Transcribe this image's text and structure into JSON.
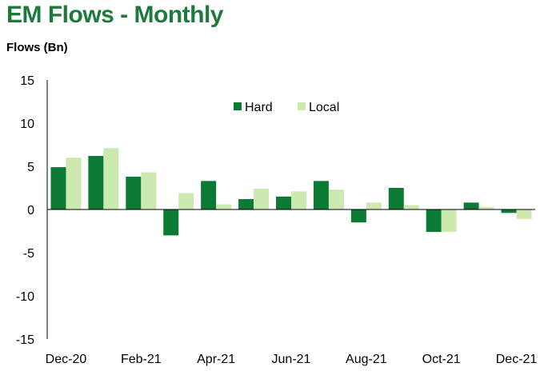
{
  "header": {
    "title": "EM Flows - Monthly",
    "units": "Flows (Bn)"
  },
  "chart_data": {
    "type": "bar",
    "title": "EM Flows - Monthly",
    "ylabel": "Flows (Bn)",
    "ylim": [
      -15,
      15
    ],
    "yticks": [
      15,
      10,
      5,
      0,
      -5,
      -10,
      -15
    ],
    "categories": [
      "Dec-20",
      "Jan-21",
      "Feb-21",
      "Mar-21",
      "Apr-21",
      "May-21",
      "Jun-21",
      "Jul-21",
      "Aug-21",
      "Sep-21",
      "Oct-21",
      "Nov-21",
      "Dec-21"
    ],
    "xtick_labels": [
      "Dec-20",
      "Feb-21",
      "Apr-21",
      "Jun-21",
      "Aug-21",
      "Oct-21",
      "Dec-21"
    ],
    "legend_position": "top-center",
    "series": [
      {
        "name": "Hard",
        "color": "#0a7a35",
        "values": [
          4.9,
          6.2,
          3.8,
          -3.0,
          3.3,
          1.2,
          1.5,
          3.3,
          -1.5,
          2.5,
          -2.6,
          0.8,
          -0.4
        ]
      },
      {
        "name": "Local",
        "color": "#cceab0",
        "values": [
          6.0,
          7.1,
          4.3,
          1.9,
          0.6,
          2.4,
          2.1,
          2.3,
          0.8,
          0.5,
          -2.6,
          0.3,
          -1.1
        ]
      }
    ]
  }
}
